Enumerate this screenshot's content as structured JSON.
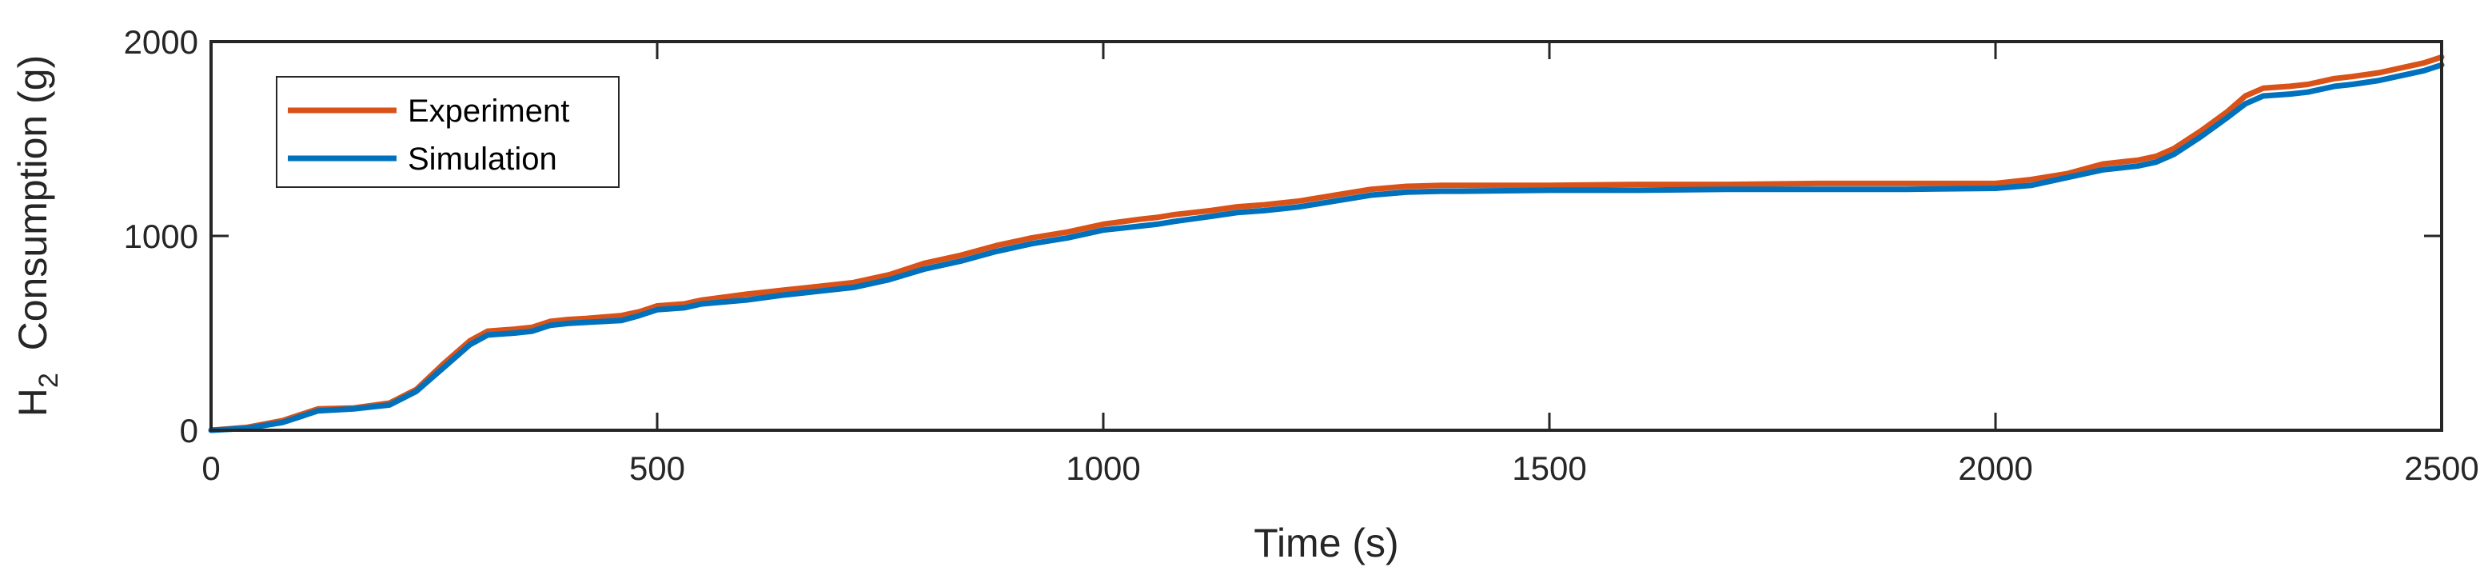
{
  "chart_data": {
    "type": "line",
    "title": "",
    "xlabel": "Time (s)",
    "ylabel": {
      "prefix": "H",
      "subscript": "2",
      "suffix": "  Consumption (g)"
    },
    "xlim": [
      0,
      2500
    ],
    "ylim": [
      0,
      2000
    ],
    "xticks": [
      0,
      500,
      1000,
      1500,
      2000,
      2500
    ],
    "yticks": [
      0,
      1000,
      2000
    ],
    "xtick_labels": [
      "0",
      "500",
      "1000",
      "1500",
      "2000",
      "2500"
    ],
    "ytick_labels": [
      "0",
      "1000",
      "2000"
    ],
    "grid": false,
    "legend_position": "top-left",
    "series": [
      {
        "name": "Experiment",
        "color": "#D95319",
        "x": [
          0,
          40,
          80,
          100,
          120,
          160,
          200,
          230,
          260,
          290,
          310,
          340,
          360,
          380,
          400,
          420,
          460,
          480,
          500,
          530,
          550,
          600,
          640,
          680,
          720,
          760,
          800,
          840,
          880,
          920,
          960,
          1000,
          1040,
          1060,
          1080,
          1120,
          1150,
          1180,
          1220,
          1260,
          1300,
          1340,
          1380,
          1400,
          1500,
          1600,
          1700,
          1800,
          1900,
          2000,
          2040,
          2080,
          2120,
          2160,
          2180,
          2200,
          2230,
          2260,
          2280,
          2300,
          2330,
          2350,
          2380,
          2400,
          2430,
          2450,
          2480,
          2500
        ],
        "y": [
          0,
          15,
          50,
          80,
          110,
          115,
          140,
          210,
          340,
          460,
          510,
          520,
          530,
          560,
          570,
          575,
          590,
          610,
          640,
          650,
          670,
          700,
          720,
          740,
          760,
          800,
          860,
          900,
          950,
          990,
          1020,
          1060,
          1085,
          1095,
          1110,
          1130,
          1150,
          1160,
          1180,
          1210,
          1240,
          1255,
          1260,
          1260,
          1260,
          1265,
          1265,
          1270,
          1270,
          1270,
          1290,
          1320,
          1370,
          1390,
          1410,
          1450,
          1540,
          1640,
          1720,
          1760,
          1770,
          1780,
          1810,
          1820,
          1840,
          1860,
          1890,
          1920
        ]
      },
      {
        "name": "Simulation",
        "color": "#0072BD",
        "x": [
          0,
          40,
          80,
          100,
          120,
          160,
          200,
          230,
          260,
          290,
          310,
          340,
          360,
          380,
          400,
          420,
          460,
          480,
          500,
          530,
          550,
          600,
          640,
          680,
          720,
          760,
          800,
          840,
          880,
          920,
          960,
          1000,
          1040,
          1060,
          1080,
          1120,
          1150,
          1180,
          1220,
          1260,
          1300,
          1340,
          1380,
          1400,
          1500,
          1600,
          1700,
          1800,
          1900,
          2000,
          2040,
          2080,
          2120,
          2160,
          2180,
          2200,
          2230,
          2260,
          2280,
          2300,
          2330,
          2350,
          2380,
          2400,
          2430,
          2450,
          2480,
          2500
        ],
        "y": [
          0,
          10,
          40,
          70,
          100,
          110,
          130,
          200,
          320,
          440,
          490,
          500,
          510,
          540,
          550,
          555,
          565,
          590,
          620,
          630,
          650,
          670,
          695,
          715,
          735,
          775,
          830,
          870,
          920,
          960,
          990,
          1030,
          1050,
          1060,
          1075,
          1100,
          1120,
          1130,
          1150,
          1180,
          1210,
          1225,
          1230,
          1230,
          1235,
          1235,
          1240,
          1240,
          1240,
          1245,
          1260,
          1300,
          1340,
          1360,
          1380,
          1420,
          1510,
          1610,
          1680,
          1720,
          1730,
          1740,
          1770,
          1780,
          1800,
          1820,
          1850,
          1880
        ]
      }
    ]
  }
}
